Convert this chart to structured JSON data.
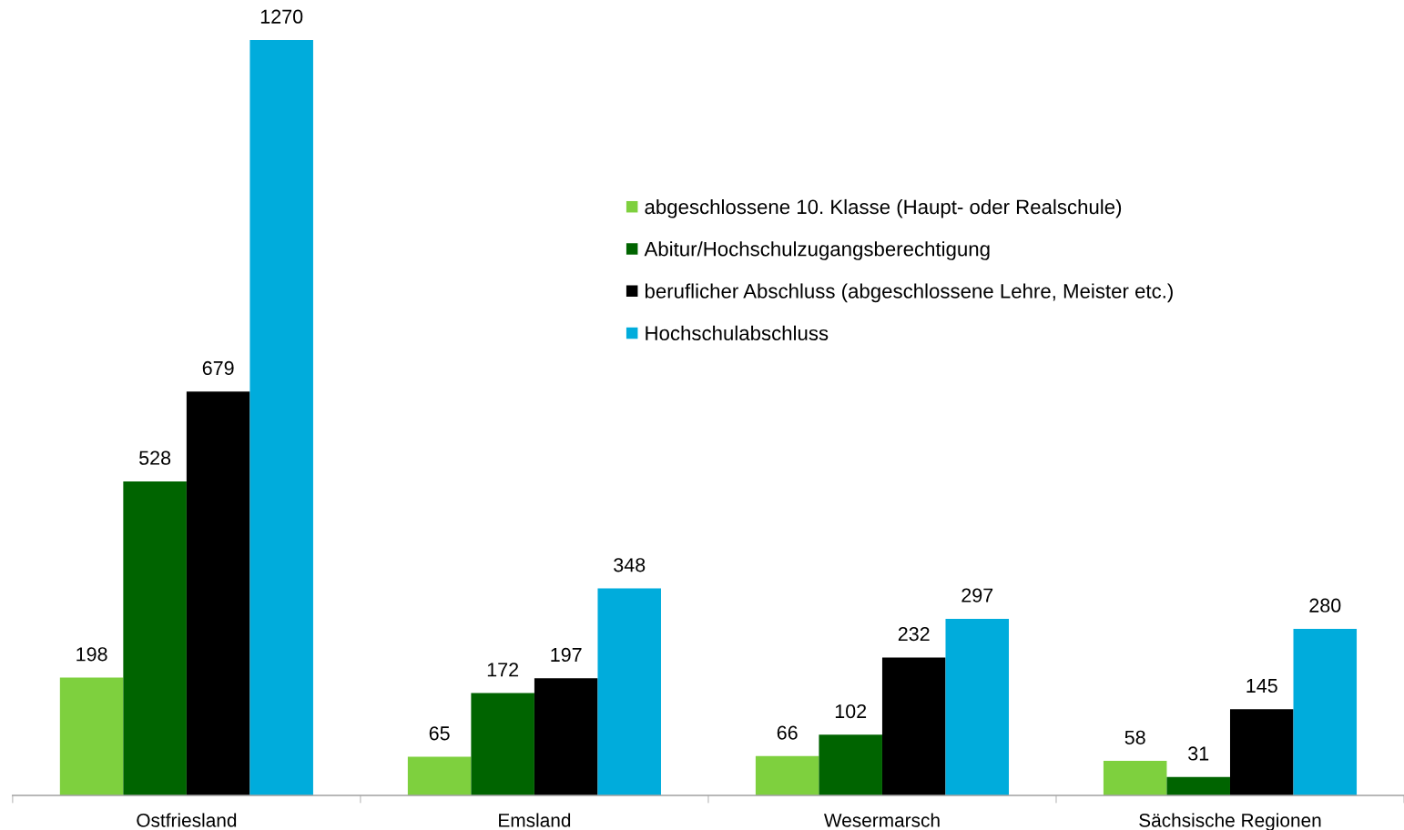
{
  "chart_data": {
    "type": "bar",
    "categories": [
      "Ostfriesland",
      "Emsland",
      "Wesermarsch",
      "Sächsische Regionen"
    ],
    "series": [
      {
        "name": "abgeschlossene 10. Klasse (Haupt- oder Realschule)",
        "color": "#7ed03e",
        "values": [
          198,
          65,
          66,
          58
        ]
      },
      {
        "name": "Abitur/Hochschulzugangsberechtigung",
        "color": "#006400",
        "values": [
          528,
          172,
          102,
          31
        ]
      },
      {
        "name": "beruflicher Abschluss (abgeschlossene Lehre, Meister etc.)",
        "color": "#000000",
        "values": [
          679,
          197,
          232,
          145
        ]
      },
      {
        "name": "Hochschulabschluss",
        "color": "#00acdc",
        "values": [
          1270,
          348,
          297,
          280
        ]
      }
    ],
    "data_labels": true,
    "legend": "top",
    "grid": false
  }
}
